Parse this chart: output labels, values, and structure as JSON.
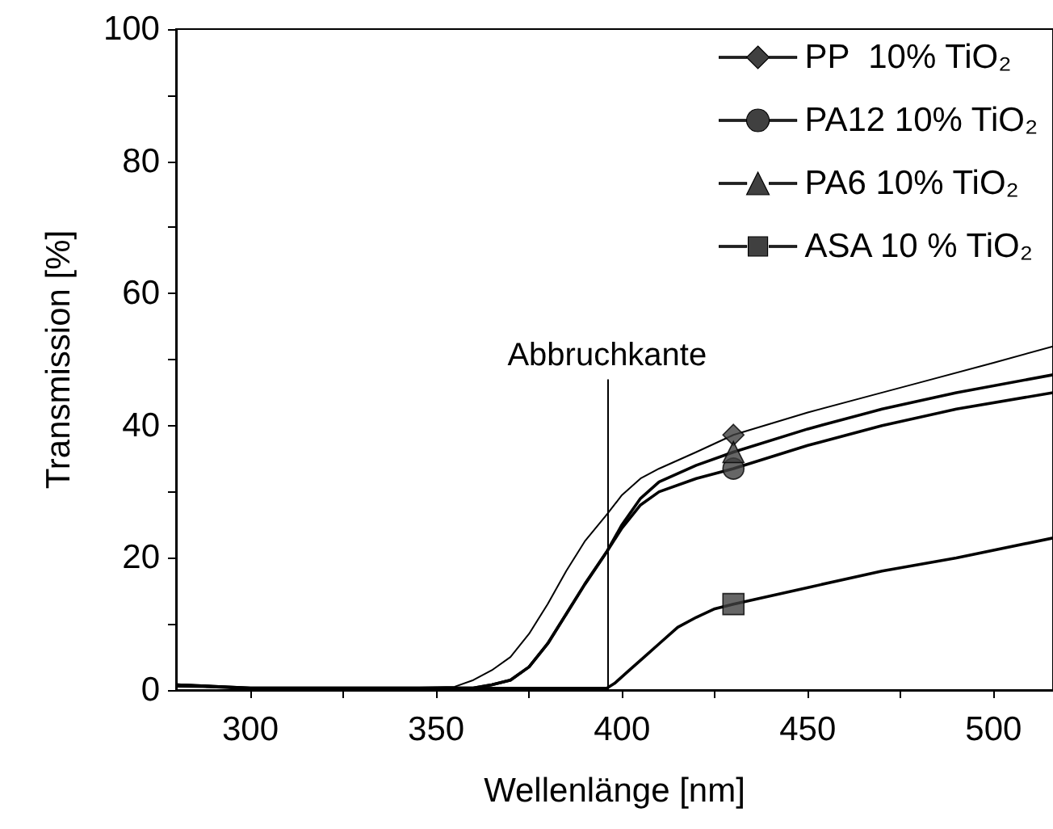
{
  "chart_data": {
    "type": "line",
    "xlabel": "Wellenlänge [nm]",
    "ylabel": "Transmission [%]",
    "xlim": [
      280,
      516
    ],
    "xticks": [
      300,
      350,
      400,
      450,
      500
    ],
    "ylim": [
      0,
      100
    ],
    "yticks": [
      0,
      20,
      40,
      60,
      80,
      100
    ],
    "grid": false,
    "legend": "top right",
    "line_style": "solid",
    "ref_lines": [
      {
        "axis": "x",
        "value": 396,
        "label": "Abbruchkante",
        "color": "#000000"
      }
    ],
    "series": [
      {
        "name": "PP  10% TiO₂",
        "color": "#000000",
        "x": [
          280,
          300,
          340,
          355,
          360,
          365,
          370,
          375,
          380,
          385,
          390,
          396,
          400,
          405,
          410,
          420,
          430,
          450,
          470,
          480,
          500,
          516
        ],
        "values": [
          0.5,
          0.3,
          0.3,
          0.5,
          1.5,
          3,
          5,
          8.5,
          13,
          18,
          22.5,
          26.6,
          29.5,
          32,
          33.5,
          36,
          38.6,
          42,
          45,
          46.5,
          49.5,
          52
        ]
      },
      {
        "name": "PA12 10% TiO₂",
        "color": "#000000",
        "x": [
          280,
          300,
          360,
          365,
          370,
          375,
          380,
          385,
          390,
          396,
          400,
          405,
          410,
          420,
          430,
          450,
          470,
          490,
          516
        ],
        "values": [
          0.8,
          0.3,
          0.3,
          0.8,
          1.5,
          3.5,
          7,
          11.5,
          16,
          21,
          24.5,
          28,
          30,
          32,
          33.5,
          37,
          40,
          42.5,
          45
        ]
      },
      {
        "name": "PA6 10% TiO₂",
        "color": "#000000",
        "x": [
          280,
          300,
          360,
          365,
          370,
          375,
          380,
          385,
          390,
          396,
          400,
          405,
          410,
          420,
          430,
          450,
          470,
          490,
          516
        ],
        "values": [
          0.8,
          0.3,
          0.3,
          0.8,
          1.5,
          3.5,
          7,
          11.5,
          16,
          21,
          25,
          29,
          31.5,
          34,
          36,
          39.5,
          42.5,
          45,
          47.7
        ]
      },
      {
        "name": "ASA 10 % TiO₂",
        "color": "#000000",
        "x": [
          280,
          300,
          396,
          398,
          402,
          406,
          410,
          415,
          420,
          425,
          430,
          450,
          470,
          490,
          516
        ],
        "values": [
          0.8,
          0.2,
          0.3,
          1,
          3,
          5,
          7,
          9.5,
          11,
          12.3,
          13,
          15.5,
          18,
          20,
          23
        ]
      },
      {
        "type": "scatter",
        "color": "#404040",
        "marker": "diamond",
        "x": [
          430
        ],
        "values": [
          38.6
        ]
      },
      {
        "type": "scatter",
        "color": "#404040",
        "marker": "circle",
        "x": [
          430
        ],
        "values": [
          33.5
        ]
      },
      {
        "type": "scatter",
        "color": "#404040",
        "marker": "triangle",
        "x": [
          430
        ],
        "values": [
          36
        ]
      },
      {
        "type": "scatter",
        "color": "#404040",
        "marker": "square",
        "x": [
          430
        ],
        "values": [
          13
        ]
      }
    ]
  }
}
